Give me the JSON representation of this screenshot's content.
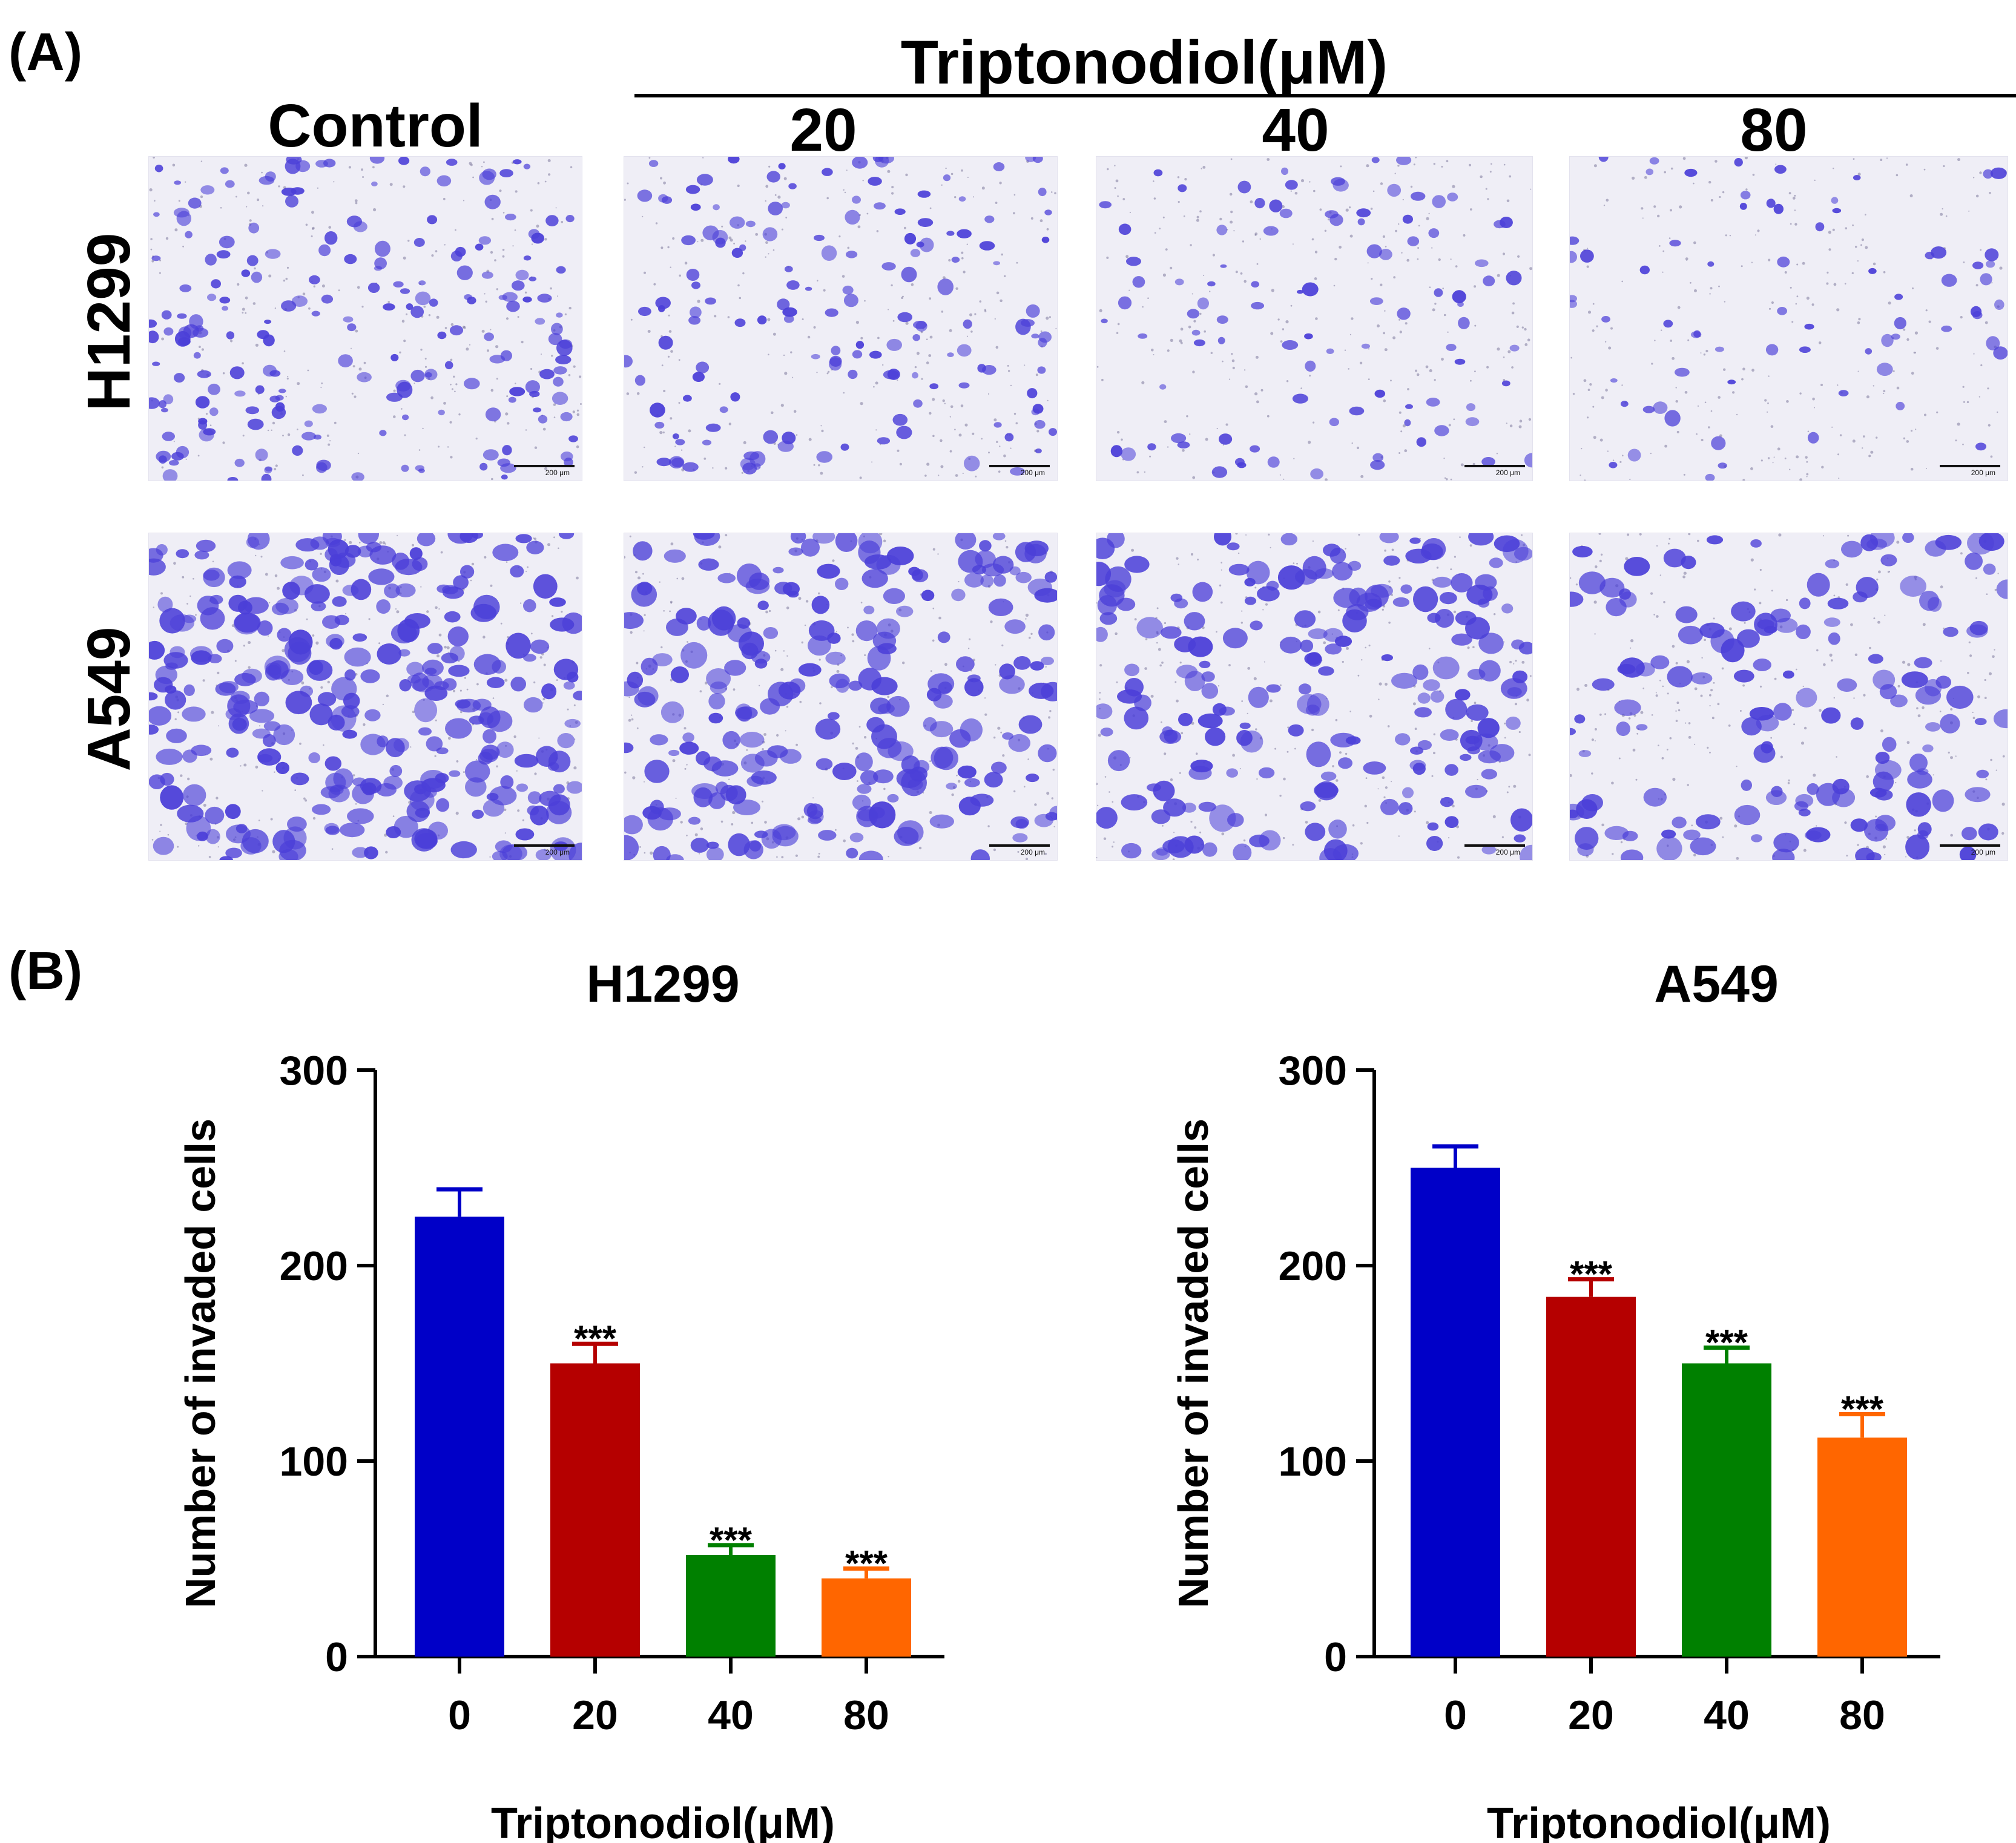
{
  "panel_a": {
    "label": "(A)",
    "treatment_header": "Triptonodiol(μM)",
    "column_headers": [
      "Control",
      "20",
      "40",
      "80"
    ],
    "row_labels": [
      "H1299",
      "A549"
    ],
    "scale_bar_text": "200 μm",
    "stain_color": "#4b3fd8",
    "background_color": "#efeef6"
  },
  "panel_b": {
    "label": "(B)"
  },
  "chart_data": [
    {
      "type": "bar",
      "title": "H1299",
      "categories": [
        "0",
        "20",
        "40",
        "80"
      ],
      "values": [
        225,
        150,
        52,
        40
      ],
      "errors": [
        14,
        10,
        5,
        5
      ],
      "significance": [
        "",
        "***",
        "***",
        "***"
      ],
      "colors": [
        "#0000c8",
        "#b50000",
        "#008000",
        "#ff6600"
      ],
      "xlabel": "Triptonodiol(μM)",
      "ylabel": "Number of invaded cells",
      "ylim": [
        0,
        300
      ],
      "yticks": [
        "0",
        "100",
        "200",
        "300"
      ],
      "grid": false
    },
    {
      "type": "bar",
      "title": "A549",
      "categories": [
        "0",
        "20",
        "40",
        "80"
      ],
      "values": [
        250,
        184,
        150,
        112
      ],
      "errors": [
        11,
        9,
        8,
        12
      ],
      "significance": [
        "",
        "***",
        "***",
        "***"
      ],
      "colors": [
        "#0000c8",
        "#b50000",
        "#008000",
        "#ff6600"
      ],
      "xlabel": "Triptonodiol(μM)",
      "ylabel": "Number of invaded cells",
      "ylim": [
        0,
        300
      ],
      "yticks": [
        "0",
        "100",
        "200",
        "300"
      ],
      "grid": false
    }
  ]
}
